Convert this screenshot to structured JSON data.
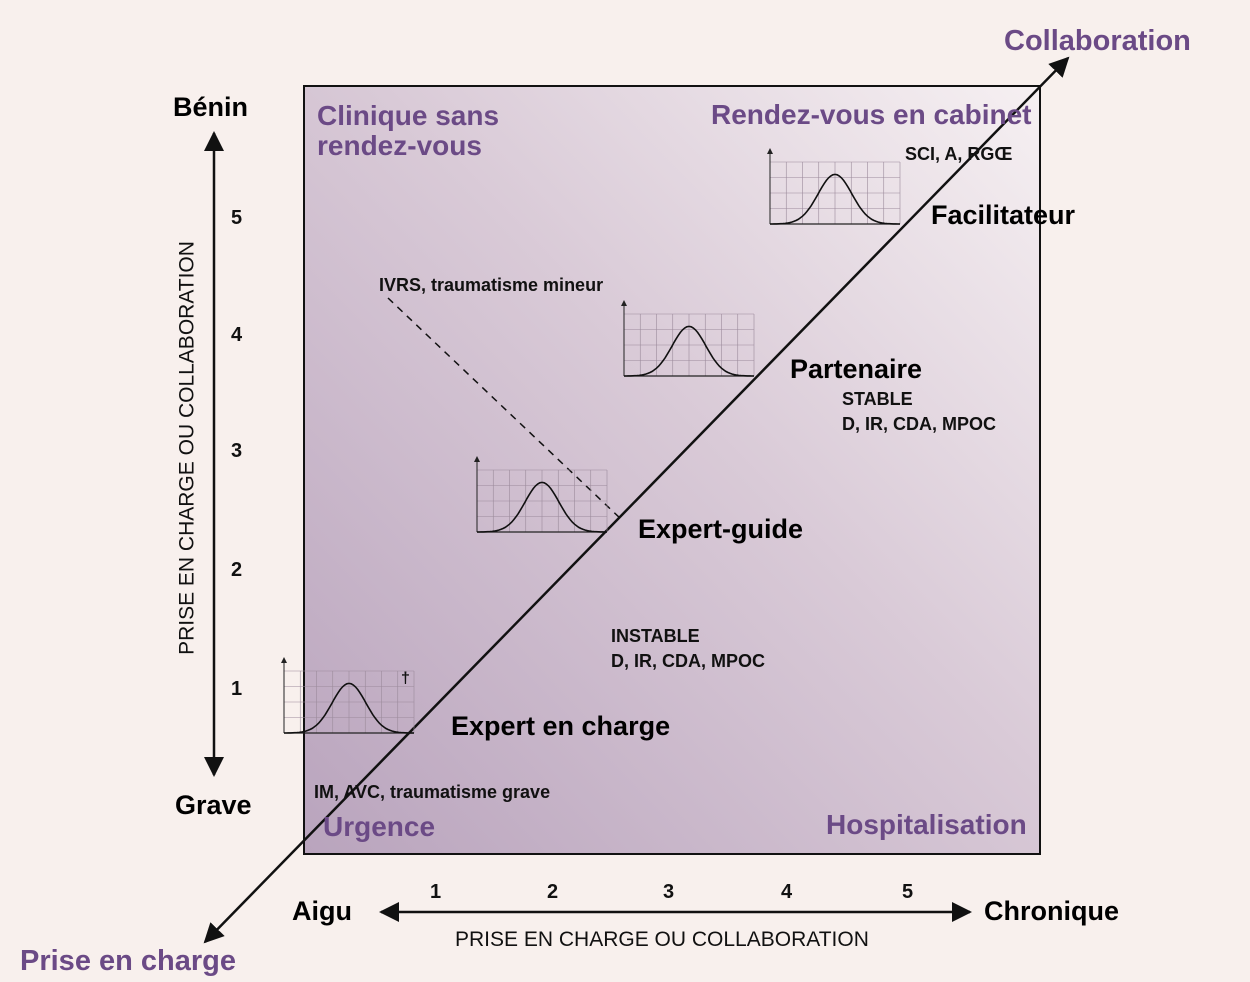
{
  "corners": {
    "top_left": "Clinique sans rendez-vous",
    "top_left_line1": "Clinique sans",
    "top_left_line2": "rendez-vous",
    "top_right": "Rendez-vous en cabinet",
    "bottom_left": "Urgence",
    "bottom_right": "Hospitalisation"
  },
  "diagonal": {
    "end_label": "Collaboration",
    "start_label": "Prise en charge"
  },
  "y_axis": {
    "top": "Bénin",
    "bottom": "Grave",
    "title": "PRISE EN CHARGE OU COLLABORATION",
    "ticks": [
      "1",
      "2",
      "3",
      "4",
      "5"
    ]
  },
  "x_axis": {
    "left": "Aigu",
    "right": "Chronique",
    "title": "PRISE EN CHARGE OU COLLABORATION",
    "ticks": [
      "1",
      "2",
      "3",
      "4",
      "5"
    ]
  },
  "roles": {
    "facilitateur": "Facilitateur",
    "partenaire": "Partenaire",
    "expert_guide": "Expert-guide",
    "expert_charge": "Expert en charge"
  },
  "annotations": {
    "sci": "SCI, A, RGŒ",
    "ivrs": "IVRS, traumatisme mineur",
    "stable": "STABLE",
    "stable_list": "D, IR, CDA, MPOC",
    "instable": "INSTABLE",
    "instable_list": "D, IR, CDA, MPOC",
    "im": "IM, AVC, traumatisme grave",
    "dagger": "†"
  },
  "curves": [
    {
      "name": "curve-facilitateur",
      "peak_fraction": 0.5
    },
    {
      "name": "curve-partenaire",
      "peak_fraction": 0.5
    },
    {
      "name": "curve-expert-guide",
      "peak_fraction": 0.5
    },
    {
      "name": "curve-expert-charge",
      "peak_fraction": 0.5
    }
  ],
  "colors": {
    "accent": "#6b4a86",
    "background": "#f8f0ed",
    "panel_light": "#f4edef",
    "panel_dark": "#b9a4bd"
  }
}
